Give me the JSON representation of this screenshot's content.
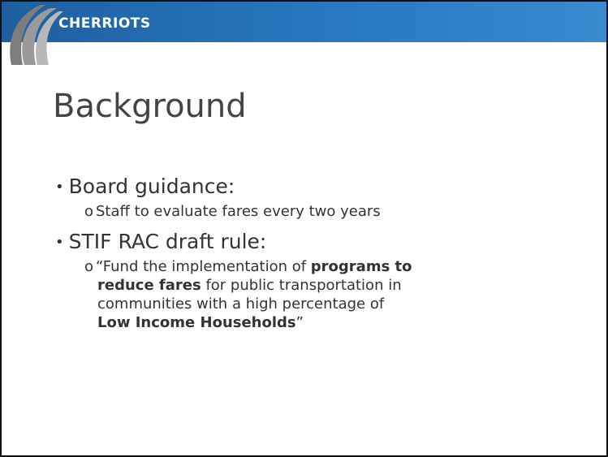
{
  "header": {
    "logo": "CHERRIOTS"
  },
  "title": "Background",
  "bullets": [
    {
      "text": "Board guidance:",
      "sub": [
        {
          "lines": [
            [
              {
                "text": "Staff to evaluate fares every two years",
                "bold": false
              }
            ]
          ]
        }
      ]
    },
    {
      "text": "STIF RAC draft rule:",
      "sub": [
        {
          "lines": [
            [
              {
                "text": "“Fund the implementation of ",
                "bold": false
              },
              {
                "text": "programs to",
                "bold": true
              }
            ],
            [
              {
                "text": "reduce fares",
                "bold": true
              },
              {
                "text": " for public transportation in",
                "bold": false
              }
            ],
            [
              {
                "text": "communities with a high percentage of",
                "bold": false
              }
            ],
            [
              {
                "text": "Low Income Households",
                "bold": true
              },
              {
                "text": "”",
                "bold": false
              }
            ]
          ]
        }
      ]
    }
  ]
}
